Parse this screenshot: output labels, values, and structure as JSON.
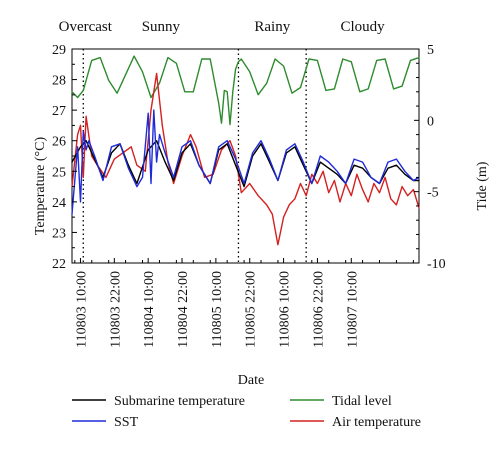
{
  "chart_data": {
    "type": "line",
    "xlabel": "Date",
    "ylabel_left": "Temperature (°C)",
    "ylabel_right": "Tide (m)",
    "x_ticks": [
      "110803 10:00",
      "110803 22:00",
      "110804 10:00",
      "110804 22:00",
      "110805 10:00",
      "110805 22:00",
      "110806 10:00",
      "110806 22:00",
      "110807 10:00"
    ],
    "y_left_ticks": [
      22,
      23,
      24,
      25,
      26,
      27,
      28,
      29
    ],
    "y_left_range": [
      22,
      29
    ],
    "y_right_ticks": [
      -10,
      -5,
      0,
      5
    ],
    "y_right_range": [
      -10,
      5
    ],
    "x_range_hours": [
      -3,
      120
    ],
    "x_tick_hours": [
      0,
      12,
      24,
      36,
      48,
      60,
      72,
      84,
      96
    ],
    "weather_periods": [
      {
        "label": "Overcast",
        "start_hour": -3,
        "end_hour": 1
      },
      {
        "label": "Sunny",
        "start_hour": 1,
        "end_hour": 56
      },
      {
        "label": "Rainy",
        "start_hour": 56,
        "end_hour": 80
      },
      {
        "label": "Cloudy",
        "start_hour": 80,
        "end_hour": 120
      }
    ],
    "dividers_hour": [
      1,
      56,
      80
    ],
    "legend": [
      {
        "label": "Submarine temperature",
        "color": "#000000"
      },
      {
        "label": "Tidal level",
        "color": "#2e8b2e"
      },
      {
        "label": "SST",
        "color": "#1f2bd8"
      },
      {
        "label": "Air temperature",
        "color": "#d42020"
      }
    ],
    "series": [
      {
        "name": "Submarine temperature",
        "axis": "left",
        "color": "#000000",
        "x": [
          -3,
          0,
          2,
          5,
          8,
          11,
          14,
          17,
          20,
          24,
          27,
          30,
          33,
          36,
          39,
          42,
          46,
          49,
          52,
          55,
          58,
          61,
          64,
          67,
          70,
          73,
          76,
          79,
          82,
          85,
          88,
          91,
          94,
          97,
          100,
          103,
          106,
          109,
          112,
          115,
          118,
          120
        ],
        "y": [
          25.3,
          25.8,
          26.0,
          25.4,
          24.8,
          25.6,
          25.9,
          25.2,
          24.6,
          25.7,
          26.0,
          25.3,
          24.7,
          25.6,
          25.9,
          25.2,
          24.6,
          25.7,
          25.9,
          25.2,
          24.5,
          25.5,
          25.9,
          25.3,
          24.7,
          25.6,
          25.8,
          25.2,
          24.6,
          25.3,
          25.1,
          24.9,
          24.6,
          25.2,
          25.1,
          24.8,
          24.6,
          25.1,
          25.2,
          24.9,
          24.7,
          24.7
        ]
      },
      {
        "name": "SST",
        "axis": "left",
        "color": "#1f2bd8",
        "x": [
          -3,
          -1,
          0,
          1,
          2,
          3,
          5,
          8,
          11,
          14,
          17,
          20,
          22,
          24,
          25,
          26,
          27,
          28,
          30,
          33,
          36,
          39,
          42,
          46,
          49,
          52,
          55,
          58,
          61,
          64,
          67,
          70,
          73,
          76,
          79,
          82,
          85,
          88,
          91,
          94,
          97,
          100,
          103,
          106,
          109,
          112,
          115,
          118,
          120
        ],
        "y": [
          23.6,
          25.8,
          24.0,
          26.3,
          25.7,
          26.0,
          25.5,
          24.7,
          25.8,
          25.9,
          25.1,
          24.5,
          24.8,
          26.9,
          24.6,
          27.0,
          25.3,
          26.2,
          25.6,
          24.8,
          25.8,
          26.0,
          25.2,
          24.6,
          25.8,
          26.0,
          25.4,
          24.6,
          25.6,
          26.0,
          25.4,
          24.7,
          25.7,
          25.9,
          25.3,
          24.6,
          25.5,
          25.3,
          25.0,
          24.6,
          25.4,
          25.3,
          24.8,
          24.6,
          25.3,
          25.4,
          25.0,
          24.7,
          24.8
        ]
      },
      {
        "name": "Air temperature",
        "axis": "left",
        "color": "#d42020",
        "x": [
          -3,
          -1,
          0,
          1,
          2,
          4,
          6,
          9,
          12,
          15,
          18,
          20,
          23,
          25,
          27,
          29,
          31,
          33,
          36,
          39,
          41,
          44,
          47,
          50,
          53,
          55,
          57,
          60,
          63,
          66,
          68,
          70,
          72,
          74,
          76,
          78,
          80,
          82,
          84,
          86,
          88,
          90,
          92,
          94,
          96,
          98,
          100,
          102,
          104,
          106,
          108,
          110,
          112,
          114,
          116,
          118,
          120
        ],
        "y": [
          24.5,
          26.2,
          26.5,
          24.8,
          26.8,
          25.5,
          25.2,
          24.8,
          25.4,
          25.6,
          25.8,
          25.2,
          25.0,
          27.0,
          28.2,
          26.5,
          25.3,
          24.6,
          25.5,
          26.2,
          25.8,
          24.8,
          24.9,
          25.7,
          26.0,
          25.5,
          24.3,
          24.6,
          24.2,
          23.9,
          23.6,
          22.6,
          23.5,
          23.9,
          24.1,
          24.6,
          24.2,
          24.9,
          24.6,
          25.0,
          24.3,
          24.7,
          24.0,
          24.6,
          24.2,
          24.9,
          24.4,
          24.0,
          24.6,
          24.3,
          24.8,
          24.1,
          23.9,
          24.5,
          24.2,
          24.4,
          23.8
        ]
      },
      {
        "name": "Tidal level",
        "axis": "right",
        "color": "#2e8b2e",
        "x": [
          -3,
          -1,
          1,
          4,
          7,
          10,
          13,
          16,
          19,
          22,
          25,
          28,
          31,
          34,
          37,
          40,
          43,
          46,
          49,
          50,
          51,
          52,
          53,
          54,
          55,
          56,
          57,
          60,
          63,
          66,
          69,
          72,
          75,
          78,
          81,
          84,
          87,
          90,
          93,
          96,
          99,
          102,
          105,
          108,
          111,
          114,
          117,
          120
        ],
        "y": [
          2.0,
          1.6,
          2.1,
          4.2,
          4.4,
          2.8,
          1.9,
          3.2,
          4.5,
          3.4,
          1.6,
          2.6,
          4.4,
          4.0,
          2.0,
          2.0,
          4.3,
          4.3,
          1.2,
          -0.2,
          2.1,
          2.0,
          -0.3,
          2.0,
          3.6,
          4.1,
          4.3,
          3.4,
          1.8,
          2.6,
          4.3,
          3.8,
          1.9,
          2.3,
          4.3,
          4.2,
          2.1,
          2.2,
          4.3,
          4.1,
          2.0,
          2.2,
          4.2,
          4.3,
          2.2,
          2.4,
          4.2,
          4.4
        ]
      }
    ]
  }
}
